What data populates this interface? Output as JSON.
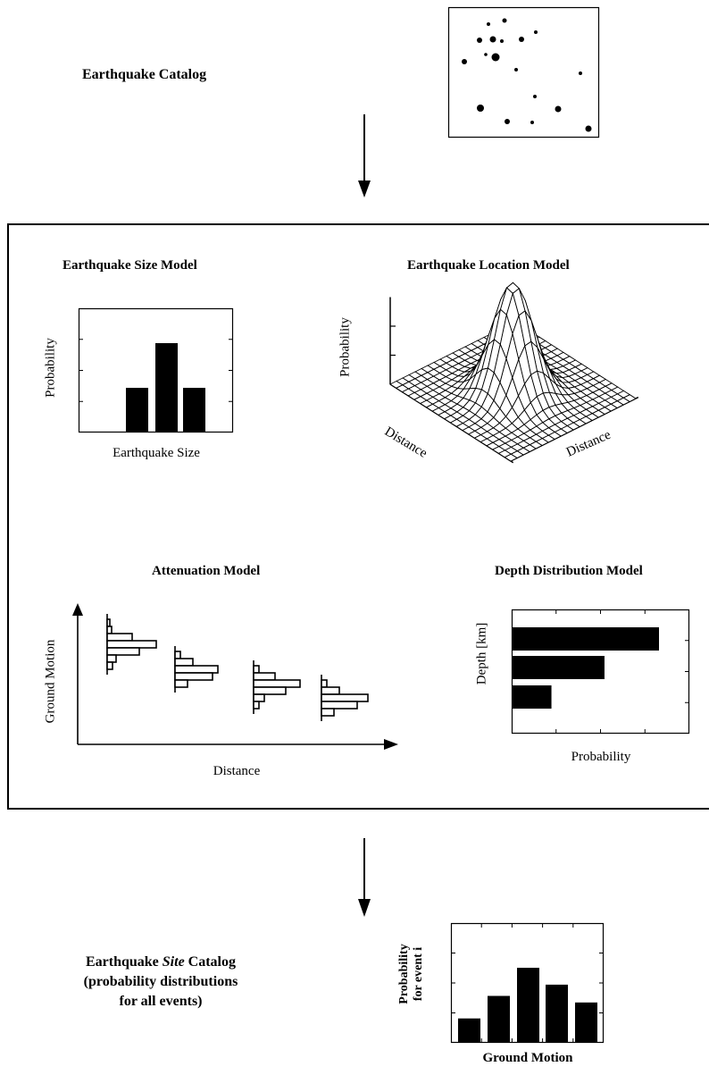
{
  "catalog": {
    "title": "Earthquake Catalog"
  },
  "size_model": {
    "title": "Earthquake Size Model",
    "ylabel": "Probability",
    "xlabel": "Earthquake Size",
    "values": [
      0.5,
      1.0,
      0.5
    ]
  },
  "location_model": {
    "title": "Earthquake Location Model",
    "zlabel": "Probability",
    "xlabel": "Distance",
    "ylabel": "Distance"
  },
  "attenuation_model": {
    "title": "Attenuation Model",
    "ylabel": "Ground Motion",
    "xlabel": "Distance"
  },
  "depth_model": {
    "title": "Depth Distribution Model",
    "ylabel": "Depth [km]",
    "xlabel": "Probability",
    "values": [
      1.0,
      0.63,
      0.27
    ]
  },
  "site_catalog": {
    "line1_pre": "Earthquake ",
    "line1_em": "Site",
    "line1_post": " Catalog",
    "line2": "(probability distributions",
    "line3": "for all events)"
  },
  "site_chart": {
    "ylabel_line1": "Probability",
    "ylabel_line2": "for event i",
    "xlabel": "Ground Motion",
    "values": [
      0.26,
      0.5,
      0.8,
      0.62,
      0.43
    ]
  },
  "chart_data": [
    {
      "type": "bar",
      "title": "Earthquake Size Model",
      "xlabel": "Earthquake Size",
      "ylabel": "Probability",
      "values": [
        0.5,
        1.0,
        0.5
      ]
    },
    {
      "type": "bar",
      "title": "Depth Distribution Model",
      "xlabel": "Probability",
      "ylabel": "Depth [km]",
      "values": [
        1.0,
        0.63,
        0.27
      ]
    },
    {
      "type": "bar",
      "xlabel": "Ground Motion",
      "ylabel": "Probability for event i",
      "values": [
        0.26,
        0.5,
        0.8,
        0.62,
        0.43
      ]
    }
  ]
}
